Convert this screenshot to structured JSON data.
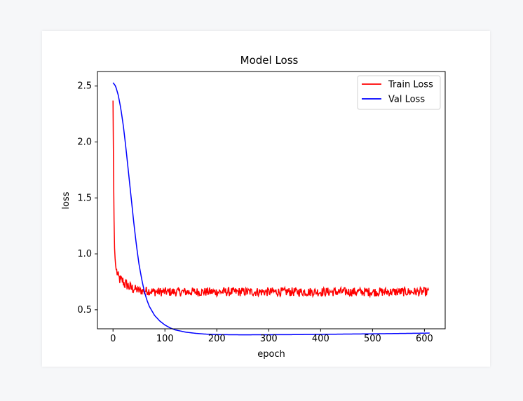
{
  "chart_data": {
    "type": "line",
    "title": "Model Loss",
    "xlabel": "epoch",
    "ylabel": "loss",
    "xlim": [
      -30,
      640
    ],
    "ylim": [
      0.33,
      2.63
    ],
    "xticks": [
      0,
      100,
      200,
      300,
      400,
      500,
      600
    ],
    "yticks": [
      0.5,
      1.0,
      1.5,
      2.0,
      2.5
    ],
    "grid": false,
    "legend_position": "top-right",
    "series": [
      {
        "name": "Train Loss",
        "color": "#ff0000",
        "x": [
          0,
          1,
          2,
          3,
          4,
          5,
          6,
          8,
          10,
          12,
          15,
          18,
          20,
          22,
          25,
          28,
          30,
          33,
          36,
          40,
          45,
          50,
          60,
          70,
          80,
          90,
          100,
          120,
          140,
          160,
          180,
          200,
          220,
          240,
          260,
          280,
          300,
          320,
          340,
          360,
          380,
          400,
          420,
          440,
          460,
          480,
          500,
          520,
          540,
          560,
          580,
          600,
          608
        ],
        "values": [
          2.37,
          1.75,
          1.3,
          1.05,
          0.96,
          0.9,
          0.86,
          0.83,
          0.79,
          0.78,
          0.76,
          0.76,
          0.75,
          0.73,
          0.73,
          0.72,
          0.71,
          0.7,
          0.69,
          0.69,
          0.68,
          0.67,
          0.67,
          0.67,
          0.66,
          0.66,
          0.66,
          0.66,
          0.66,
          0.66,
          0.66,
          0.66,
          0.66,
          0.66,
          0.66,
          0.66,
          0.66,
          0.66,
          0.66,
          0.66,
          0.66,
          0.66,
          0.66,
          0.66,
          0.66,
          0.66,
          0.66,
          0.66,
          0.66,
          0.66,
          0.66,
          0.66,
          0.66
        ],
        "noise_amplitude": 0.04
      },
      {
        "name": "Val Loss",
        "color": "#0000ff",
        "x": [
          0,
          5,
          10,
          15,
          20,
          25,
          30,
          35,
          40,
          45,
          50,
          55,
          60,
          65,
          70,
          80,
          90,
          100,
          110,
          120,
          140,
          160,
          180,
          200,
          250,
          300,
          350,
          400,
          450,
          500,
          550,
          600,
          610
        ],
        "values": [
          2.53,
          2.5,
          2.42,
          2.3,
          2.14,
          1.94,
          1.72,
          1.5,
          1.28,
          1.08,
          0.91,
          0.78,
          0.67,
          0.59,
          0.53,
          0.45,
          0.4,
          0.364,
          0.338,
          0.32,
          0.3,
          0.289,
          0.282,
          0.278,
          0.276,
          0.277,
          0.278,
          0.28,
          0.283,
          0.285,
          0.288,
          0.291,
          0.292
        ]
      }
    ]
  }
}
